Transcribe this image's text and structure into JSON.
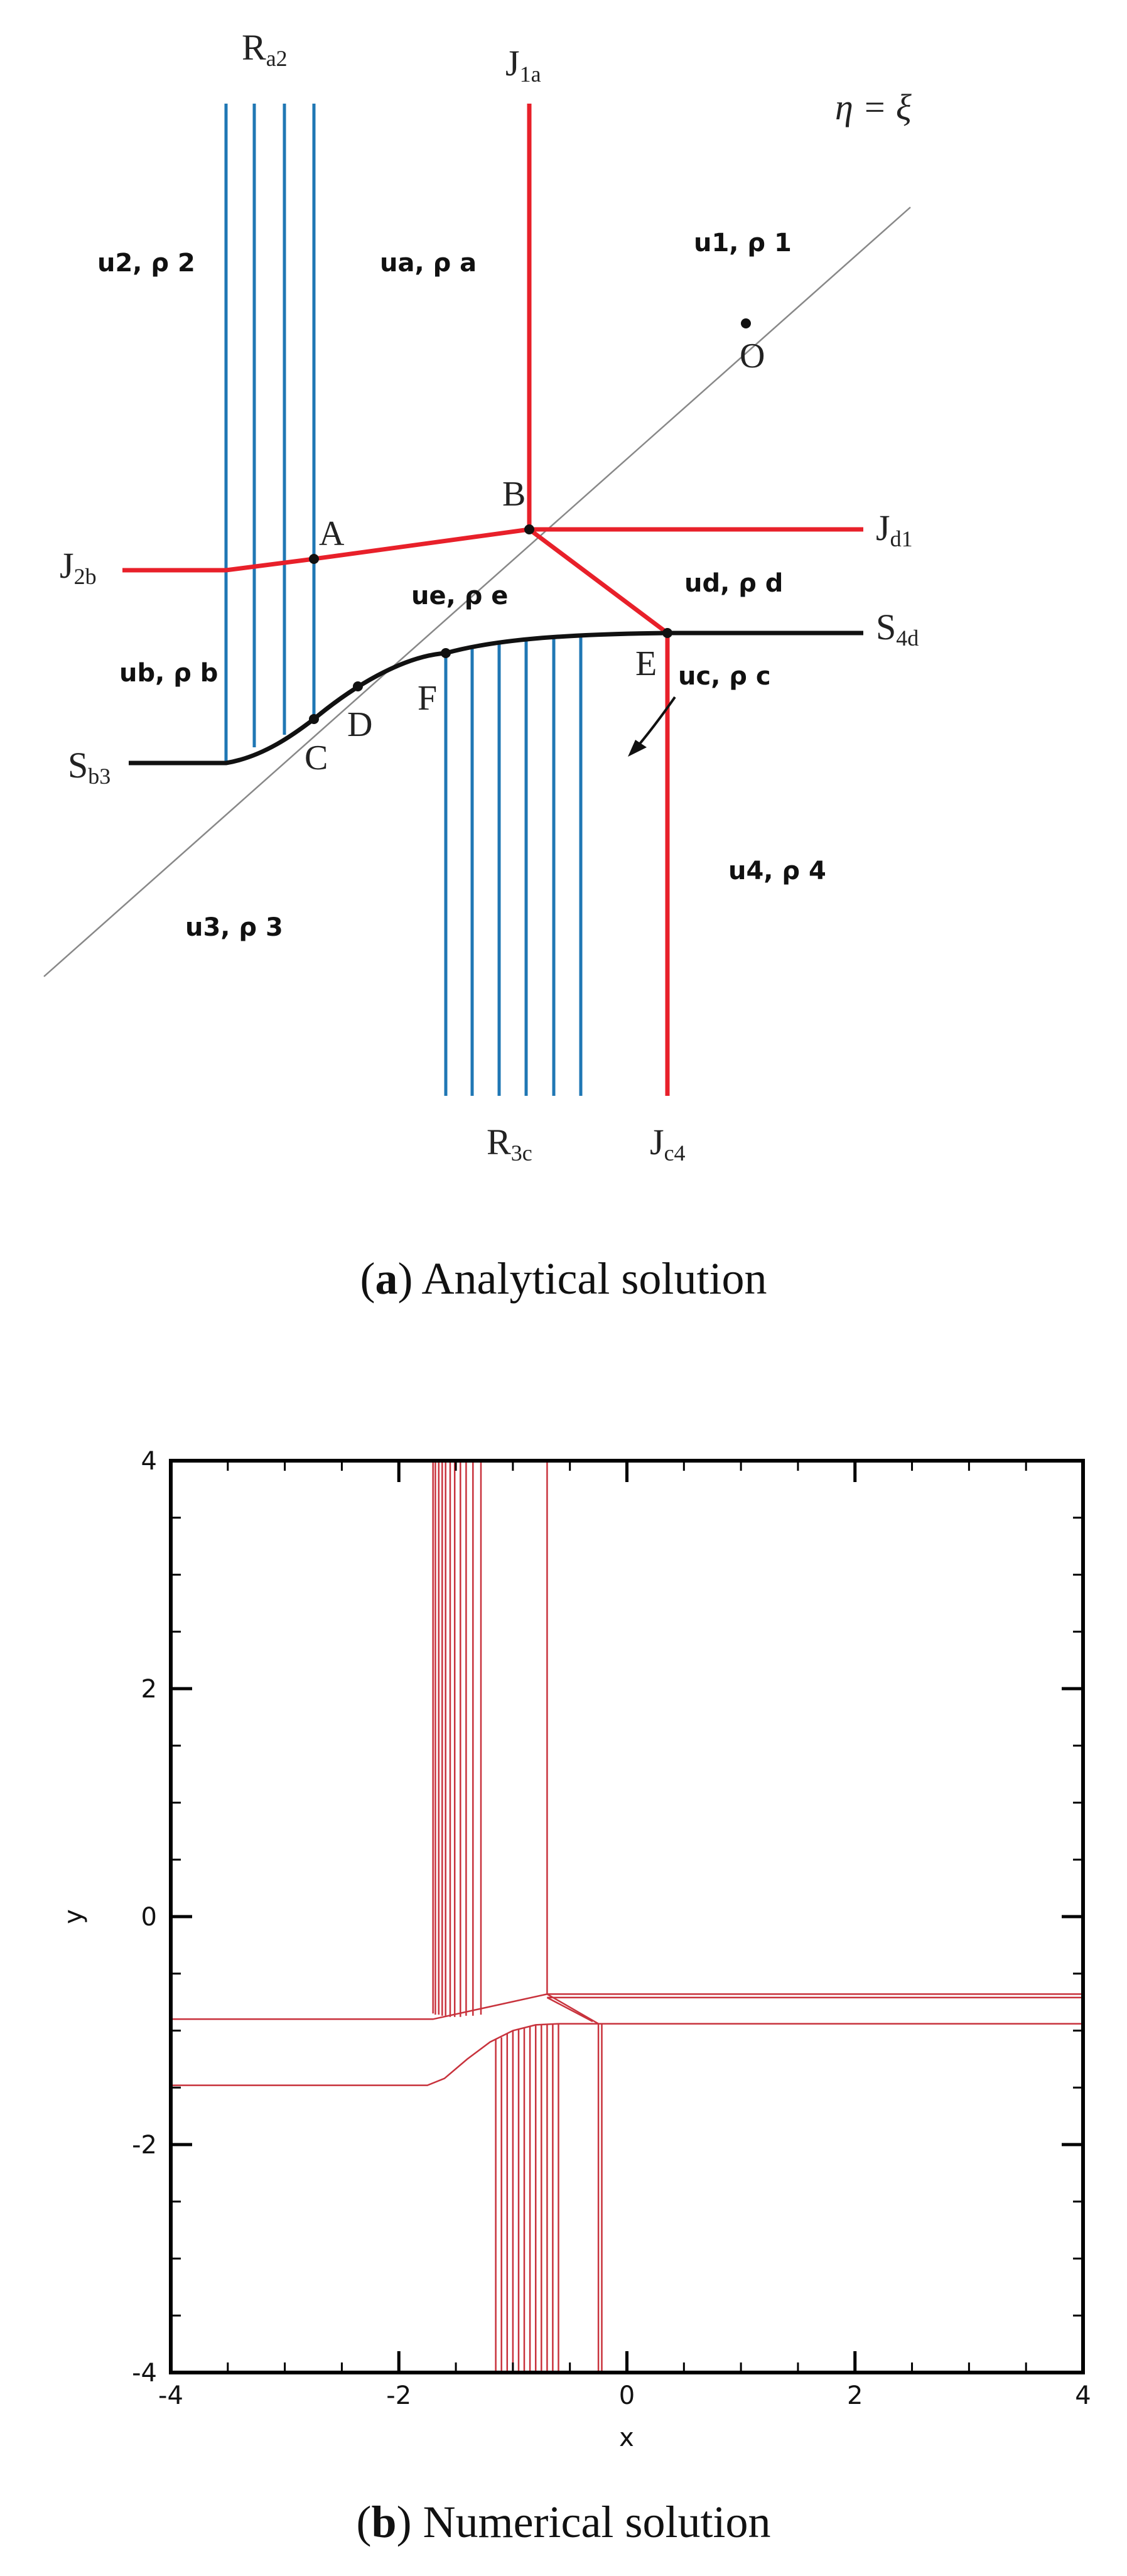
{
  "panel_a": {
    "caption_letter": "a",
    "caption_text": "Analytical solution",
    "diagonal_label": "η = ξ",
    "wave_labels": {
      "Ra2": [
        "R",
        "a2"
      ],
      "J1a": [
        "J",
        "1a"
      ],
      "J2b": [
        "J",
        "2b"
      ],
      "Jd1": [
        "J",
        "d1"
      ],
      "S4d": [
        "S",
        "4d"
      ],
      "Sb3": [
        "S",
        "b3"
      ],
      "R3c": [
        "R",
        "3c"
      ],
      "Jc4": [
        "J",
        "c4"
      ]
    },
    "points": [
      "A",
      "B",
      "C",
      "D",
      "E",
      "F",
      "O"
    ],
    "regions": {
      "r2": "u2, ρ 2",
      "ra": "ua, ρ a",
      "r1": "u1, ρ 1",
      "rb": "ub, ρ b",
      "re": "ue, ρ e",
      "rd": "ud, ρ d",
      "rc": "uc, ρ c",
      "r4": "u4, ρ 4",
      "r3": "u3, ρ 3"
    },
    "colors": {
      "rarefaction": "#1f77b4",
      "contact": "#e8202a",
      "shock": "#111111",
      "diagonal": "#888888"
    }
  },
  "panel_b": {
    "caption_letter": "b",
    "caption_text": "Numerical solution",
    "chart_data": {
      "type": "line",
      "title": "",
      "xlabel": "x",
      "ylabel": "y",
      "xlim": [
        -4,
        4
      ],
      "ylim": [
        -4,
        4
      ],
      "xticks": [
        -4,
        -2,
        0,
        2,
        4
      ],
      "yticks": [
        -4,
        -2,
        0,
        2,
        4
      ],
      "line_color": "#c8323c",
      "series": [
        {
          "points": [
            [
              -1.7,
              4
            ],
            [
              -1.7,
              -0.85
            ]
          ]
        },
        {
          "points": [
            [
              -1.68,
              4
            ],
            [
              -1.68,
              -0.86
            ]
          ]
        },
        {
          "points": [
            [
              -1.65,
              4
            ],
            [
              -1.65,
              -0.86
            ]
          ]
        },
        {
          "points": [
            [
              -1.62,
              4
            ],
            [
              -1.62,
              -0.87
            ]
          ]
        },
        {
          "points": [
            [
              -1.59,
              4
            ],
            [
              -1.59,
              -0.87
            ]
          ]
        },
        {
          "points": [
            [
              -1.55,
              4
            ],
            [
              -1.55,
              -0.88
            ]
          ]
        },
        {
          "points": [
            [
              -1.51,
              4
            ],
            [
              -1.51,
              -0.88
            ]
          ]
        },
        {
          "points": [
            [
              -1.46,
              4
            ],
            [
              -1.46,
              -0.88
            ]
          ]
        },
        {
          "points": [
            [
              -1.41,
              4
            ],
            [
              -1.41,
              -0.87
            ]
          ]
        },
        {
          "points": [
            [
              -1.35,
              4
            ],
            [
              -1.35,
              -0.87
            ]
          ]
        },
        {
          "points": [
            [
              -1.28,
              4
            ],
            [
              -1.28,
              -0.86
            ]
          ]
        },
        {
          "points": [
            [
              -0.7,
              4
            ],
            [
              -0.7,
              -0.68
            ]
          ]
        },
        {
          "points": [
            [
              -4,
              -0.9
            ],
            [
              -1.7,
              -0.9
            ],
            [
              -0.7,
              -0.68
            ]
          ]
        },
        {
          "points": [
            [
              -4,
              -1.48
            ],
            [
              -1.75,
              -1.48
            ],
            [
              -1.6,
              -1.42
            ],
            [
              -1.4,
              -1.25
            ],
            [
              -1.2,
              -1.1
            ],
            [
              -1.0,
              -1.0
            ],
            [
              -0.8,
              -0.95
            ],
            [
              -0.6,
              -0.94
            ],
            [
              -0.25,
              -0.94
            ]
          ]
        },
        {
          "points": [
            [
              -0.25,
              -0.94
            ],
            [
              4,
              -0.94
            ]
          ]
        },
        {
          "points": [
            [
              -0.7,
              -0.68
            ],
            [
              4,
              -0.68
            ]
          ]
        },
        {
          "points": [
            [
              -0.7,
              -0.71
            ],
            [
              4,
              -0.71
            ]
          ]
        },
        {
          "points": [
            [
              -0.7,
              -0.68
            ],
            [
              -0.25,
              -0.94
            ]
          ]
        },
        {
          "points": [
            [
              -0.7,
              -0.71
            ],
            [
              -0.3,
              -0.92
            ]
          ]
        },
        {
          "points": [
            [
              -0.25,
              -0.94
            ],
            [
              -0.25,
              -4
            ]
          ]
        },
        {
          "points": [
            [
              -0.22,
              -0.94
            ],
            [
              -0.22,
              -4
            ]
          ]
        },
        {
          "points": [
            [
              -1.15,
              -1.08
            ],
            [
              -1.15,
              -4
            ]
          ]
        },
        {
          "points": [
            [
              -1.1,
              -1.06
            ],
            [
              -1.1,
              -4
            ]
          ]
        },
        {
          "points": [
            [
              -1.05,
              -1.03
            ],
            [
              -1.05,
              -4
            ]
          ]
        },
        {
          "points": [
            [
              -1.0,
              -1.0
            ],
            [
              -1.0,
              -4
            ]
          ]
        },
        {
          "points": [
            [
              -0.95,
              -0.99
            ],
            [
              -0.95,
              -4
            ]
          ]
        },
        {
          "points": [
            [
              -0.9,
              -0.97
            ],
            [
              -0.9,
              -4
            ]
          ]
        },
        {
          "points": [
            [
              -0.85,
              -0.96
            ],
            [
              -0.85,
              -4
            ]
          ]
        },
        {
          "points": [
            [
              -0.8,
              -0.95
            ],
            [
              -0.8,
              -4
            ]
          ]
        },
        {
          "points": [
            [
              -0.75,
              -0.95
            ],
            [
              -0.75,
              -4
            ]
          ]
        },
        {
          "points": [
            [
              -0.7,
              -0.94
            ],
            [
              -0.7,
              -4
            ]
          ]
        },
        {
          "points": [
            [
              -0.65,
              -0.94
            ],
            [
              -0.65,
              -4
            ]
          ]
        },
        {
          "points": [
            [
              -0.6,
              -0.94
            ],
            [
              -0.6,
              -4
            ]
          ]
        }
      ]
    }
  }
}
